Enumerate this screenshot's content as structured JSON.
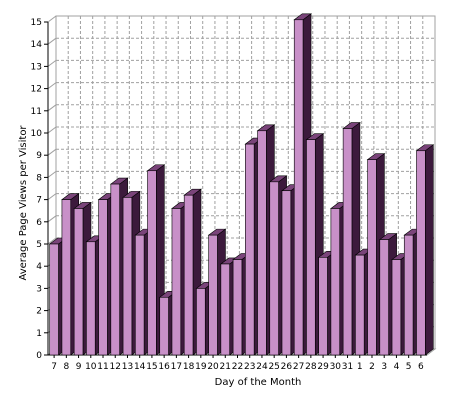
{
  "chart_data": {
    "type": "bar",
    "title": "",
    "xlabel": "Day of the Month",
    "ylabel": "Average Page Views per Visitor",
    "ylim": [
      0,
      15
    ],
    "yticks": [
      "0",
      "1",
      "2",
      "3",
      "4",
      "5",
      "6",
      "7",
      "8",
      "9",
      "10",
      "11",
      "12",
      "13",
      "14",
      "15"
    ],
    "grid": true,
    "categories": [
      "7",
      "8",
      "9",
      "10",
      "11",
      "12",
      "13",
      "14",
      "15",
      "16",
      "17",
      "18",
      "19",
      "20",
      "21",
      "22",
      "23",
      "24",
      "25",
      "26",
      "27",
      "28",
      "29",
      "30",
      "31",
      "1",
      "2",
      "3",
      "4",
      "5",
      "6"
    ],
    "values": [
      5.0,
      7.0,
      6.6,
      5.1,
      7.0,
      7.7,
      7.1,
      5.4,
      8.3,
      2.6,
      6.6,
      7.2,
      3.0,
      5.4,
      4.1,
      4.3,
      9.5,
      10.1,
      7.8,
      7.4,
      15.1,
      9.7,
      4.4,
      6.6,
      10.2,
      4.5,
      8.8,
      5.2,
      4.3,
      5.4,
      9.2
    ],
    "colors": {
      "bar_front": "#c890c8",
      "bar_side": "#3c1a3c",
      "bar_top": "#7a447a",
      "grid": "#a0a0a0",
      "wall": "#ffffff",
      "axis": "#000000"
    }
  }
}
